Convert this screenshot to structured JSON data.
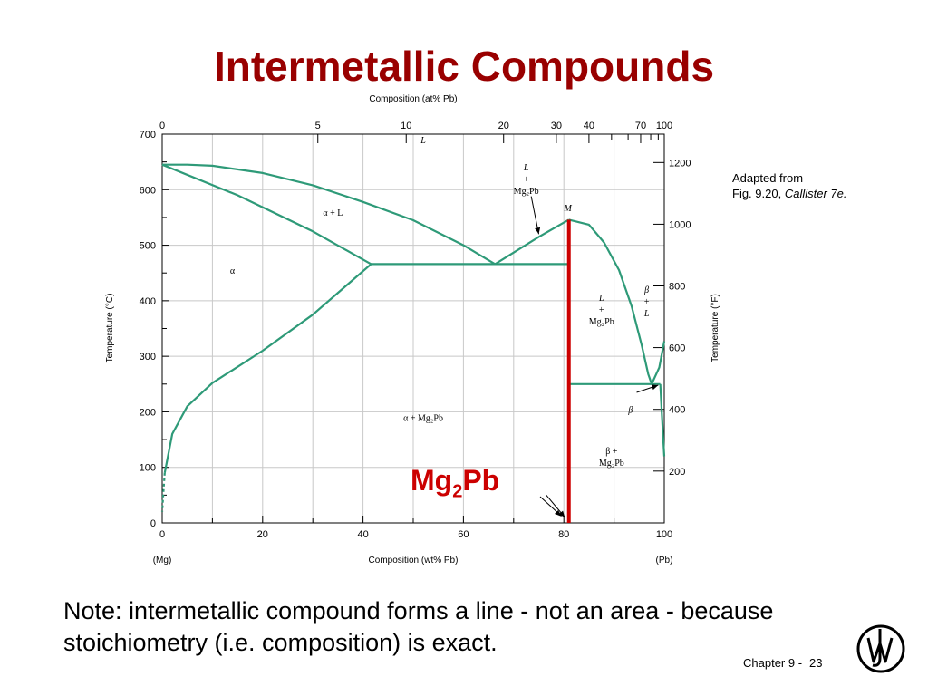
{
  "slide": {
    "title": "Intermetallic Compounds",
    "credit_line1": "Adapted from",
    "credit_fig": "Fig. 9.20,",
    "credit_book": "Callister 7e.",
    "compound_label_main": "Mg",
    "compound_label_sub": "2",
    "compound_label_tail": "Pb",
    "note": "Note: intermetallic compound forms a line - not an area - because stoichiometry (i.e. composition) is exact.",
    "footer_chapter": "Chapter 9 -",
    "footer_page": "23",
    "logo_icon": "wiley-logo-icon"
  },
  "chart_data": {
    "type": "line",
    "title": "",
    "xlabel": "Composition (wt% Pb)",
    "ylabel": "Temperature (°C)",
    "top_axis_label": "Composition (at% Pb)",
    "right_axis_label": "Temperature (°F)",
    "xlim": [
      0,
      100
    ],
    "ylim": [
      0,
      700
    ],
    "x_ticks": [
      "0",
      "20",
      "40",
      "60",
      "80",
      "100"
    ],
    "y_ticks": [
      "0",
      "100",
      "200",
      "300",
      "400",
      "500",
      "600",
      "700"
    ],
    "top_ticks": [
      {
        "at": 0,
        "wt": 0
      },
      {
        "at": 5,
        "wt": 31
      },
      {
        "at": 10,
        "wt": 48.6
      },
      {
        "at": 20,
        "wt": 68
      },
      {
        "at": 30,
        "wt": 78.5
      },
      {
        "at": 40,
        "wt": 85
      }
    ],
    "top_ticks_end": [
      {
        "at": 70,
        "wt": 95.3
      },
      {
        "at": 100,
        "wt": 100
      }
    ],
    "right_ticks": [
      {
        "f": 200,
        "c": 93.3
      },
      {
        "f": 400,
        "c": 204.4
      },
      {
        "f": 600,
        "c": 315.6
      },
      {
        "f": 800,
        "c": 426.7
      },
      {
        "f": 1000,
        "c": 537.8
      },
      {
        "f": 1200,
        "c": 648.9
      }
    ],
    "x_end_labels": [
      "(Mg)",
      "(Pb)"
    ],
    "line_color": "#2e9a78",
    "compound_color": "#cc0000",
    "series": [
      {
        "values": [
          [
            0,
            645
          ],
          [
            5,
            645
          ],
          [
            10,
            643
          ],
          [
            20,
            630
          ],
          [
            30,
            608
          ],
          [
            40,
            578
          ],
          [
            50,
            545
          ],
          [
            60,
            500
          ],
          [
            66.3,
            466
          ]
        ]
      },
      {
        "values": [
          [
            0,
            645
          ],
          [
            15,
            590
          ],
          [
            30,
            525
          ],
          [
            41.6,
            466
          ]
        ]
      },
      {
        "values": [
          [
            41.6,
            466
          ],
          [
            81,
            466
          ]
        ]
      },
      {
        "values": [
          [
            0.5,
            90
          ],
          [
            2,
            160
          ],
          [
            5,
            210
          ],
          [
            10,
            252
          ],
          [
            20,
            310
          ],
          [
            30,
            375
          ],
          [
            41.6,
            466
          ]
        ]
      },
      {
        "values": [
          [
            66.3,
            466
          ],
          [
            75,
            515
          ],
          [
            81,
            546
          ]
        ]
      },
      {
        "values": [
          [
            81,
            546
          ],
          [
            85,
            537
          ],
          [
            88,
            505
          ],
          [
            91,
            455
          ],
          [
            93.5,
            390
          ],
          [
            95.5,
            320
          ],
          [
            96.8,
            268
          ],
          [
            97.5,
            250
          ]
        ]
      },
      {
        "values": [
          [
            81,
            250
          ],
          [
            99.2,
            250
          ]
        ]
      },
      {
        "values": [
          [
            97.5,
            250
          ],
          [
            99,
            280
          ],
          [
            100,
            327
          ]
        ]
      },
      {
        "values": [
          [
            99.2,
            250
          ],
          [
            99.5,
            200
          ],
          [
            99.8,
            150
          ],
          [
            100,
            120
          ]
        ]
      },
      {
        "values": [
          [
            0.5,
            90
          ],
          [
            0.2,
            50
          ],
          [
            0,
            20
          ]
        ],
        "dashed": true
      }
    ],
    "compound_line": {
      "x": 81,
      "ymin": 0,
      "ymax": 546
    },
    "annotations": [
      {
        "lines": [
          "L"
        ],
        "x": 52,
        "y": 690,
        "italic": [
          true
        ]
      },
      {
        "lines": [
          "α  + L"
        ],
        "x": 34,
        "y": 560,
        "italic": [
          false
        ]
      },
      {
        "lines": [
          "α"
        ],
        "x": 14,
        "y": 455,
        "italic": [
          false
        ]
      },
      {
        "lines": [
          "α  + Mg₂Pb"
        ],
        "x": 52,
        "y": 190,
        "italic": [
          false
        ]
      },
      {
        "lines": [
          "L",
          "+",
          "Mg₂Pb"
        ],
        "x": 72.5,
        "y": 620,
        "italic": [
          true,
          false,
          false
        ]
      },
      {
        "lines": [
          "M"
        ],
        "x": 80.8,
        "y": 568,
        "italic": [
          true
        ]
      },
      {
        "lines": [
          "L",
          "+",
          "Mg₂Pb"
        ],
        "x": 87.5,
        "y": 385,
        "italic": [
          true,
          false,
          false
        ]
      },
      {
        "lines": [
          "β",
          "+",
          "L"
        ],
        "x": 96.5,
        "y": 400,
        "italic": [
          true,
          false,
          true
        ]
      },
      {
        "lines": [
          "β"
        ],
        "x": 93.3,
        "y": 205,
        "italic": [
          true
        ]
      },
      {
        "lines": [
          "β  +",
          "Mg₂Pb"
        ],
        "x": 89.5,
        "y": 120,
        "italic": [
          false,
          false
        ]
      }
    ]
  }
}
